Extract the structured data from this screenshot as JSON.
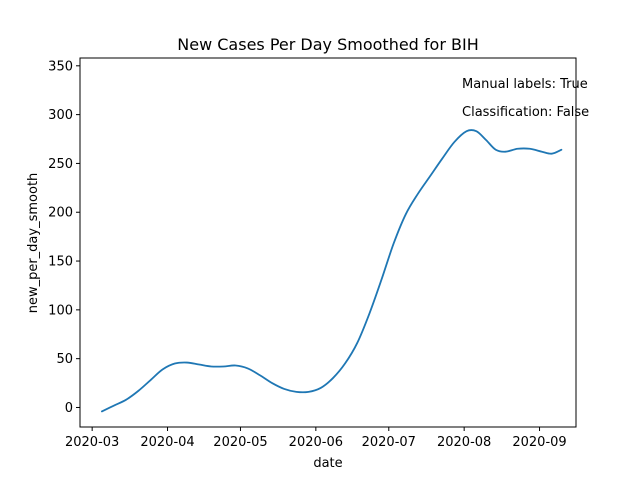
{
  "chart_data": {
    "type": "line",
    "title": "New Cases Per Day Smoothed for BIH",
    "xlabel": "date",
    "ylabel": "new_per_day_smooth",
    "x_ticks": [
      "2020-03",
      "2020-04",
      "2020-05",
      "2020-06",
      "2020-07",
      "2020-08",
      "2020-09"
    ],
    "y_ticks": [
      0,
      50,
      100,
      150,
      200,
      250,
      300,
      350
    ],
    "ylim": [
      -20,
      358
    ],
    "xlim": [
      "2020-02-25",
      "2020-09-16"
    ],
    "grid": false,
    "annotations": [
      "Manual labels: True",
      "Classification: False"
    ],
    "series": [
      {
        "color": "#1f77b4",
        "points": [
          [
            "2020-03-05",
            -4
          ],
          [
            "2020-03-10",
            2
          ],
          [
            "2020-03-15",
            8
          ],
          [
            "2020-03-20",
            17
          ],
          [
            "2020-03-25",
            28
          ],
          [
            "2020-03-30",
            39
          ],
          [
            "2020-04-04",
            45
          ],
          [
            "2020-04-09",
            46
          ],
          [
            "2020-04-14",
            44
          ],
          [
            "2020-04-19",
            42
          ],
          [
            "2020-04-24",
            42
          ],
          [
            "2020-04-29",
            43
          ],
          [
            "2020-05-04",
            40
          ],
          [
            "2020-05-09",
            33
          ],
          [
            "2020-05-14",
            25
          ],
          [
            "2020-05-19",
            19
          ],
          [
            "2020-05-24",
            16
          ],
          [
            "2020-05-29",
            16
          ],
          [
            "2020-06-03",
            20
          ],
          [
            "2020-06-08",
            30
          ],
          [
            "2020-06-13",
            45
          ],
          [
            "2020-06-18",
            66
          ],
          [
            "2020-06-23",
            96
          ],
          [
            "2020-06-28",
            131
          ],
          [
            "2020-07-03",
            168
          ],
          [
            "2020-07-08",
            198
          ],
          [
            "2020-07-13",
            219
          ],
          [
            "2020-07-18",
            237
          ],
          [
            "2020-07-23",
            255
          ],
          [
            "2020-07-28",
            272
          ],
          [
            "2020-08-02",
            283
          ],
          [
            "2020-08-06",
            283
          ],
          [
            "2020-08-10",
            274
          ],
          [
            "2020-08-14",
            264
          ],
          [
            "2020-08-18",
            262
          ],
          [
            "2020-08-23",
            265
          ],
          [
            "2020-08-28",
            265
          ],
          [
            "2020-09-02",
            262
          ],
          [
            "2020-09-06",
            260
          ],
          [
            "2020-09-10",
            264
          ]
        ]
      }
    ]
  }
}
